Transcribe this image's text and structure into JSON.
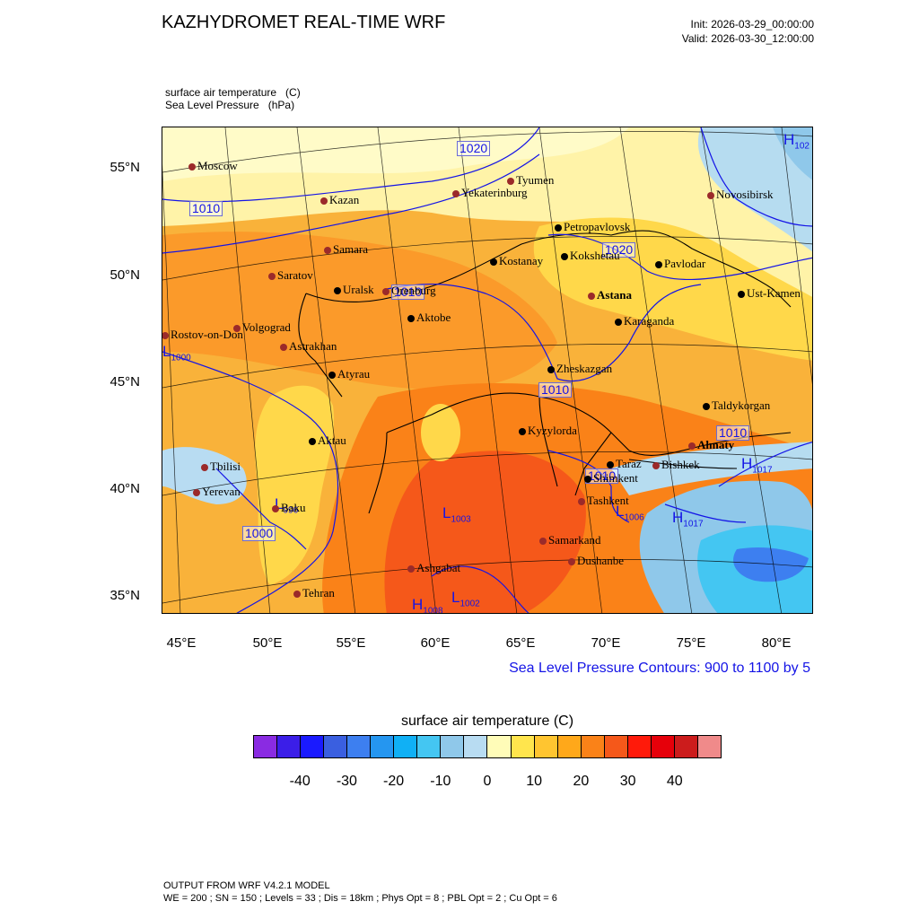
{
  "header": {
    "title": "KAZHYDROMET REAL-TIME WRF",
    "init": "Init: 2026-03-29_00:00:00",
    "valid": "Valid: 2026-03-30_12:00:00"
  },
  "fields": {
    "line1": "surface air temperature   (C)",
    "line2": "Sea Level Pressure   (hPa)"
  },
  "axes": {
    "lat_ticks": [
      "55°N",
      "50°N",
      "45°N",
      "40°N",
      "35°N"
    ],
    "lon_ticks": [
      "45°E",
      "50°E",
      "55°E",
      "60°E",
      "65°E",
      "70°E",
      "75°E",
      "80°E"
    ]
  },
  "contour_note": "Sea Level Pressure Contours: 900 to 1100 by 5",
  "colorbar": {
    "title": "surface air temperature  (C)",
    "colors": [
      "#8a2be2",
      "#3b1ee8",
      "#1a1aff",
      "#3a5fe0",
      "#3d7ff0",
      "#2596f0",
      "#10b0f5",
      "#44c6f2",
      "#8fc8ea",
      "#b8dcf2",
      "#fffcb8",
      "#ffe54d",
      "#ffc530",
      "#ffa81a",
      "#fa8218",
      "#f5581a",
      "#ff1a0a",
      "#e6000a",
      "#cc1c1c",
      "#f08a8a"
    ],
    "labels": [
      "-40",
      "-30",
      "-20",
      "-10",
      "0",
      "10",
      "20",
      "30",
      "40"
    ]
  },
  "cities": [
    {
      "name": "Moscow",
      "color": "#9b2a2a"
    },
    {
      "name": "Kazan",
      "color": "#9b2a2a"
    },
    {
      "name": "Tyumen",
      "color": "#9b2a2a"
    },
    {
      "name": "Yekaterinburg",
      "color": "#9b2a2a"
    },
    {
      "name": "Novosibirsk",
      "color": "#9b2a2a"
    },
    {
      "name": "Samara",
      "color": "#9b2a2a"
    },
    {
      "name": "Saratov",
      "color": "#9b2a2a"
    },
    {
      "name": "Uralsk",
      "color": "#000000"
    },
    {
      "name": "Orenburg",
      "color": "#9b2a2a"
    },
    {
      "name": "Aktobe",
      "color": "#000000"
    },
    {
      "name": "Volgograd",
      "color": "#9b2a2a"
    },
    {
      "name": "Rostov-on-Don",
      "color": "#9b2a2a"
    },
    {
      "name": "Astrakhan",
      "color": "#9b2a2a"
    },
    {
      "name": "Atyrau",
      "color": "#000000"
    },
    {
      "name": "Aktau",
      "color": "#000000"
    },
    {
      "name": "Tbilisi",
      "color": "#9b2a2a"
    },
    {
      "name": "Yerevan",
      "color": "#9b2a2a"
    },
    {
      "name": "Baku",
      "color": "#9b2a2a"
    },
    {
      "name": "Tehran",
      "color": "#9b2a2a"
    },
    {
      "name": "Ashgabat",
      "color": "#9b2a2a"
    },
    {
      "name": "Kostanay",
      "color": "#000000"
    },
    {
      "name": "Petropavlovsk",
      "color": "#000000"
    },
    {
      "name": "Kokshetau",
      "color": "#000000"
    },
    {
      "name": "Pavlodar",
      "color": "#000000"
    },
    {
      "name": "Astana",
      "color": "#9b2a2a"
    },
    {
      "name": "Ust-Kamen",
      "color": "#000000"
    },
    {
      "name": "Karaganda",
      "color": "#000000"
    },
    {
      "name": "Zheskazgan",
      "color": "#000000"
    },
    {
      "name": "Kyzylorda",
      "color": "#000000"
    },
    {
      "name": "Taldykorgan",
      "color": "#000000"
    },
    {
      "name": "Almaty",
      "color": "#9b2a2a"
    },
    {
      "name": "Bishkek",
      "color": "#9b2a2a"
    },
    {
      "name": "Taraz",
      "color": "#000000"
    },
    {
      "name": "Shimkent",
      "color": "#000000"
    },
    {
      "name": "Tashkent",
      "color": "#9b2a2a"
    },
    {
      "name": "Samarkand",
      "color": "#9b2a2a"
    },
    {
      "name": "Dushanbe",
      "color": "#9b2a2a"
    }
  ],
  "pressure_labels": [
    "1020",
    "1010",
    "1020",
    "1010",
    "1010",
    "1010",
    "1010",
    "1000"
  ],
  "hl_markers": [
    {
      "letter": "H",
      "value": "102"
    },
    {
      "letter": "L",
      "value": "1000"
    },
    {
      "letter": "L",
      "value": "1003"
    },
    {
      "letter": "H",
      "value": "1008"
    },
    {
      "letter": "L",
      "value": "1002"
    },
    {
      "letter": "H",
      "value": "1017"
    },
    {
      "letter": "H",
      "value": "1017"
    },
    {
      "letter": "L",
      "value": "1006"
    },
    {
      "letter": "L",
      "value": "996"
    }
  ],
  "footer": {
    "line1": "OUTPUT FROM WRF V4.2.1 MODEL",
    "line2": "WE = 200 ; SN = 150 ; Levels = 33 ; Dis = 18km ; Phys Opt = 8 ; PBL Opt = 2 ; Cu Opt = 6"
  }
}
